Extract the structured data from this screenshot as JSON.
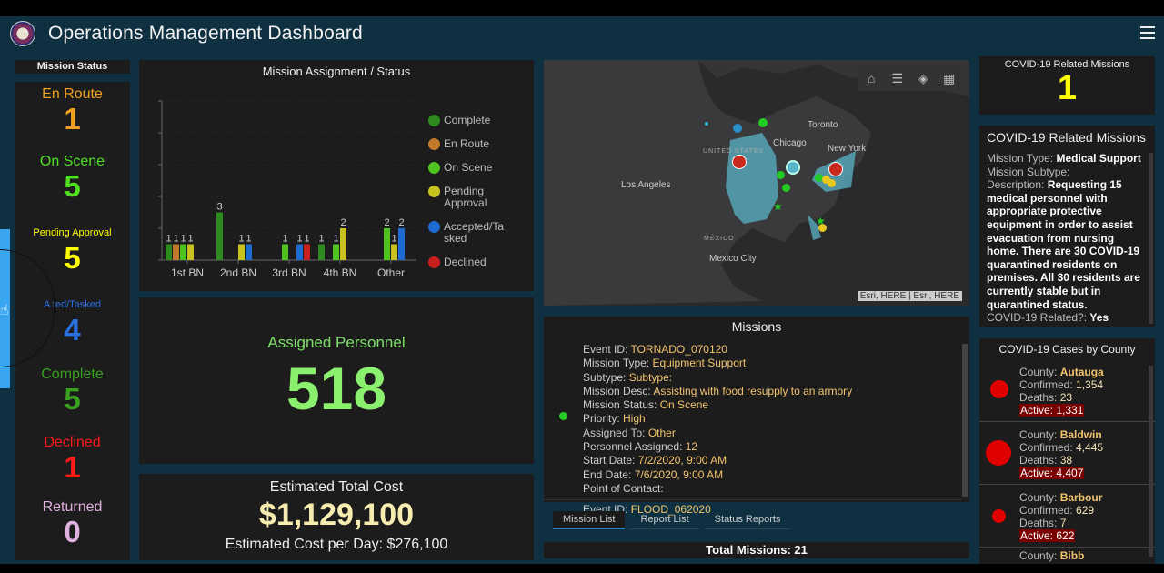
{
  "header": {
    "title": "Operations Management Dashboard",
    "logo": "state-guard-seal",
    "menu_icon": "hamburger-menu-icon"
  },
  "mission_status": {
    "header": "Mission Status",
    "items": [
      {
        "label": "En Route",
        "value": "1",
        "color": "#f0a020"
      },
      {
        "label": "On Scene",
        "value": "5",
        "color": "#50e020"
      },
      {
        "label": "Pending Approval",
        "value": "5",
        "color": "#ffff00"
      },
      {
        "label": "Accepted/Tasked",
        "display_label": "A ted/Tasked",
        "value": "4",
        "color": "#2a70e0"
      },
      {
        "label": "Complete",
        "value": "5",
        "color": "#3aa020"
      },
      {
        "label": "Declined",
        "value": "1",
        "color": "#ff1a1a"
      },
      {
        "label": "Returned",
        "value": "0",
        "color": "#e0b0e0"
      }
    ]
  },
  "chart_data": {
    "type": "bar",
    "title": "Mission Assignment / Status",
    "xlabel": "",
    "ylabel": "",
    "ylim": [
      0,
      10
    ],
    "grid": true,
    "legend_position": "right",
    "categories": [
      "1st BN",
      "2nd BN",
      "3rd BN",
      "4th BN",
      "Other"
    ],
    "series": [
      {
        "name": "Complete",
        "color": "#2e8a1e",
        "values": [
          1,
          3,
          null,
          1,
          null
        ]
      },
      {
        "name": "En Route",
        "color": "#c07a2a",
        "values": [
          1,
          null,
          null,
          null,
          null
        ]
      },
      {
        "name": "On Scene",
        "color": "#4ec21e",
        "values": [
          1,
          null,
          1,
          1,
          2
        ]
      },
      {
        "name": "Pending Approval",
        "color": "#c8c21e",
        "values": [
          1,
          1,
          null,
          2,
          1
        ]
      },
      {
        "name": "Accepted/Tasked",
        "color": "#1e6ad0",
        "values": [
          null,
          1,
          1,
          null,
          2
        ]
      },
      {
        "name": "Declined",
        "color": "#c81e1e",
        "values": [
          null,
          null,
          1,
          null,
          null
        ]
      }
    ],
    "legend_labels": [
      "Complete",
      "En Route",
      "On Scene",
      "Pending Approval",
      "Accepted/Tasked",
      "Declined"
    ]
  },
  "personnel": {
    "label": "Assigned Personnel",
    "value": "518"
  },
  "cost": {
    "label": "Estimated Total Cost",
    "value": "$1,129,100",
    "per_day": "Estimated Cost per Day: $276,100"
  },
  "map": {
    "tools": [
      {
        "name": "home",
        "glyph": "⌂"
      },
      {
        "name": "legend",
        "glyph": "☰"
      },
      {
        "name": "layers",
        "glyph": "◈"
      },
      {
        "name": "basemap",
        "glyph": "▦"
      }
    ],
    "labels": {
      "toronto": "Toronto",
      "chicago": "Chicago",
      "new_york": "New York",
      "united_states": "UNITED STATES",
      "los_angeles": "Los Angeles",
      "mexico": "MÉXICO",
      "mexico_city": "Mexico City"
    },
    "attribution": "Esri, HERE | Esri, HERE"
  },
  "missions": {
    "title": "Missions",
    "items": [
      {
        "event_id_label": "Event ID:",
        "event_id": "TORNADO_070120",
        "type_label": "Mission Type:",
        "type": "Equipment Support",
        "subtype_label": "Subtype:",
        "subtype": "Subtype:",
        "desc_label": "Mission Desc:",
        "desc": "Assisting with food resupply to an armory",
        "status_label": "Mission Status:",
        "status": "On Scene",
        "priority_label": "Priority:",
        "priority": "High",
        "assigned_label": "Assigned To:",
        "assigned": "Other",
        "personnel_label": "Personnel Assigned:",
        "personnel": "12",
        "start_label": "Start Date:",
        "start": "7/2/2020, 9:00 AM",
        "end_label": "End Date:",
        "end": "7/6/2020, 9:00 AM",
        "poc_label": "Point of Contact:"
      },
      {
        "event_id_label": "Event ID:",
        "event_id": "FLOOD_062020"
      }
    ],
    "tabs": [
      "Mission List",
      "Report List",
      "Status Reports"
    ],
    "active_tab": "Mission List",
    "total": "Total Missions: 21"
  },
  "covid_count": {
    "label": "COVID-19 Related Missions",
    "value": "1"
  },
  "covid_missions": {
    "title": "COVID-19 Related Missions",
    "type_label": "Mission Type:",
    "type": "Medical Support",
    "subtype_label": "Mission Subtype:",
    "desc_label": "Description:",
    "desc": "Requesting 15 medical personnel with appropriate protective equipment in order to assist evacuation from nursing home. There are 30 COVID-19 quarantined residents on premises. All 30 residents are currently stable but in quarantined status.",
    "related_label": "COVID-19 Related?:",
    "related": "Yes"
  },
  "cases": {
    "title": "COVID-19 Cases by County",
    "items": [
      {
        "county": "Autauga",
        "confirmed": "1,354",
        "deaths": "23",
        "active": "1,331"
      },
      {
        "county": "Baldwin",
        "confirmed": "4,445",
        "deaths": "38",
        "active": "4,407"
      },
      {
        "county": "Barbour",
        "confirmed": "629",
        "deaths": "7",
        "active": "622"
      },
      {
        "county": "Bibb"
      }
    ],
    "labels": {
      "county": "County:",
      "confirmed": "Confirmed:",
      "deaths": "Deaths:",
      "active": "Active:"
    }
  }
}
